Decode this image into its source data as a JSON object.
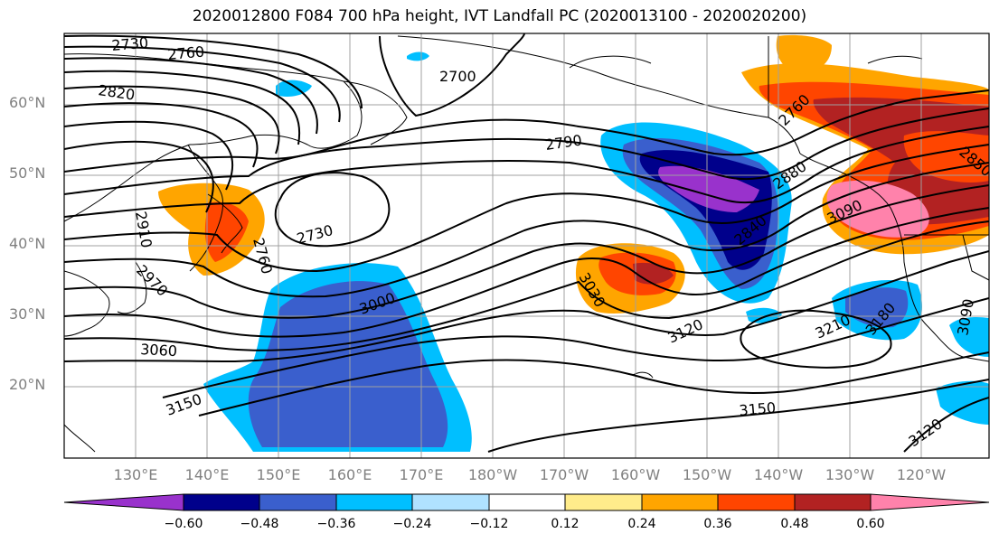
{
  "title": "2020012800 F084 700 hPa height, IVT Landfall PC (2020013100 - 2020020200)",
  "lat_labels": [
    "60°N",
    "50°N",
    "40°N",
    "30°N",
    "20°N"
  ],
  "lon_labels": [
    "130°E",
    "140°E",
    "150°E",
    "160°E",
    "170°E",
    "180°W",
    "170°W",
    "160°W",
    "150°W",
    "140°W",
    "130°W",
    "120°W"
  ],
  "contour_labels": [
    "2730",
    "2760",
    "2820",
    "2700",
    "2790",
    "2730",
    "2880",
    "2840",
    "3090",
    "3030",
    "3000",
    "3060",
    "3120",
    "3210",
    "3180",
    "3150",
    "3150",
    "3120",
    "2910",
    "2970",
    "2760",
    "3090",
    "2850",
    "2760"
  ],
  "colorbar": {
    "ticks": [
      "−0.60",
      "−0.48",
      "−0.36",
      "−0.24",
      "−0.12",
      "0.12",
      "0.24",
      "0.36",
      "0.48",
      "0.60"
    ],
    "colors": [
      "#9932cc",
      "#00008b",
      "#3a5fcd",
      "#00bfff",
      "#b0e2ff",
      "#ffffff",
      "#ffec8b",
      "#ffa500",
      "#ff4500",
      "#b22222",
      "#ff82ab"
    ]
  }
}
